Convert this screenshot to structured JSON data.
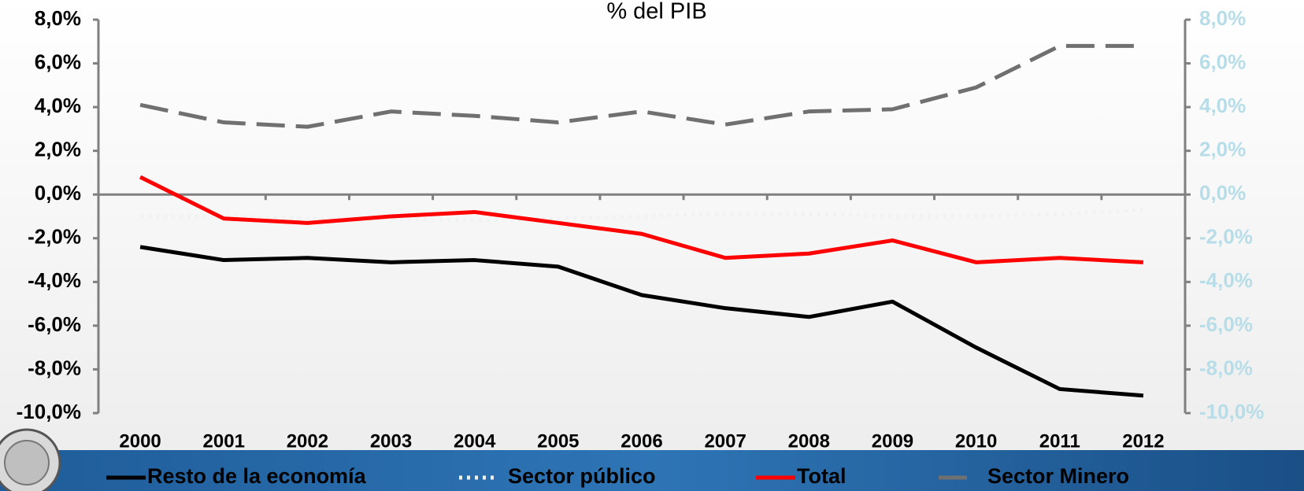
{
  "chart_data": {
    "type": "line",
    "title": "% del PIB",
    "categories": [
      "2000",
      "2001",
      "2002",
      "2003",
      "2004",
      "2005",
      "2006",
      "2007",
      "2008",
      "2009",
      "2010",
      "2011",
      "2012"
    ],
    "ylim": [
      -10,
      8
    ],
    "yticks": [
      {
        "value": -10,
        "label": "-10,0%"
      },
      {
        "value": -8,
        "label": "-8,0%"
      },
      {
        "value": -6,
        "label": "-6,0%"
      },
      {
        "value": -4,
        "label": "-4,0%"
      },
      {
        "value": -2,
        "label": "-2,0%"
      },
      {
        "value": 0,
        "label": "0,0%"
      },
      {
        "value": 2,
        "label": "2,0%"
      },
      {
        "value": 4,
        "label": "4,0%"
      },
      {
        "value": 6,
        "label": "6,0%"
      },
      {
        "value": 8,
        "label": "8,0%"
      }
    ],
    "y2lim": [
      -10,
      8
    ],
    "y2ticks": [
      {
        "value": -10,
        "label": "-10,0%"
      },
      {
        "value": -8,
        "label": "-8,0%"
      },
      {
        "value": -6,
        "label": "-6,0%"
      },
      {
        "value": -4,
        "label": "-4,0%"
      },
      {
        "value": -2,
        "label": "-2,0%"
      },
      {
        "value": 0,
        "label": "0,0%"
      },
      {
        "value": 2,
        "label": "2,0%"
      },
      {
        "value": 4,
        "label": "4,0%"
      },
      {
        "value": 6,
        "label": "6,0%"
      },
      {
        "value": 8,
        "label": "8,0%"
      }
    ],
    "legend": "bottom",
    "series": [
      {
        "name": "Resto de la economía",
        "color": "#000000",
        "style": "solid",
        "values": [
          -2.4,
          -3.0,
          -2.9,
          -3.1,
          -3.0,
          -3.3,
          -4.6,
          -5.2,
          -5.6,
          -4.9,
          -7.0,
          -8.9,
          -9.2
        ]
      },
      {
        "name": "Sector público",
        "color": "#f2f2f2",
        "style": "dotted",
        "values": [
          -1.0,
          -1.0,
          -1.1,
          -1.1,
          -1.2,
          -1.1,
          -1.0,
          -0.9,
          -0.9,
          -1.0,
          -1.0,
          -0.9,
          -0.7
        ]
      },
      {
        "name": "Total",
        "color": "#ff0000",
        "style": "solid",
        "values": [
          0.8,
          -1.1,
          -1.3,
          -1.0,
          -0.8,
          -1.3,
          -1.8,
          -2.9,
          -2.7,
          -2.1,
          -3.1,
          -2.9,
          -3.1
        ]
      },
      {
        "name": "Sector Minero",
        "color": "#707070",
        "style": "dashed",
        "values": [
          4.1,
          3.3,
          3.1,
          3.8,
          3.6,
          3.3,
          3.8,
          3.2,
          3.8,
          3.9,
          4.9,
          6.8,
          6.8
        ]
      }
    ]
  }
}
